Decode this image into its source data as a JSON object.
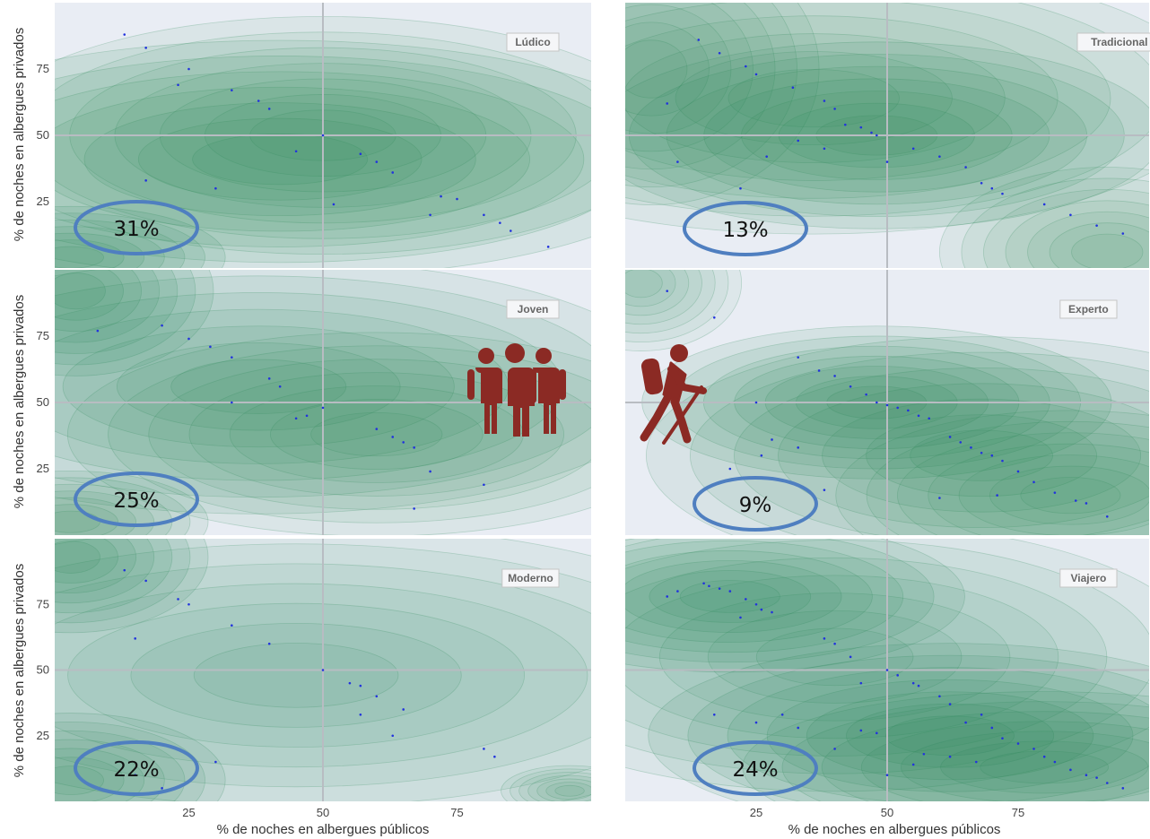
{
  "chart_data": {
    "type": "density-contour",
    "xlabel": "% de noches en albergues públicos",
    "ylabel": "% de noches en albergues privados",
    "xlim": [
      0,
      100
    ],
    "ylim": [
      0,
      100
    ],
    "xticks": [
      25,
      50,
      75
    ],
    "yticks": [
      25,
      50,
      75
    ],
    "grid": true,
    "colors": {
      "background": "#e9edf4",
      "contour": "#2e8a5c",
      "points": "#2233dd",
      "ellipse": "#4f7fc0",
      "icon": "#8b2a24",
      "gridline": "#b8bcc2"
    },
    "panels": [
      {
        "name": "Lúdico",
        "share": "31%",
        "peaks": [
          [
            3,
            4,
            9,
            6,
            1.0
          ],
          [
            42,
            41,
            24,
            14,
            0.9
          ],
          [
            50,
            50,
            20,
            14,
            0.45
          ]
        ],
        "points": [
          [
            13,
            88
          ],
          [
            17,
            83
          ],
          [
            25,
            75
          ],
          [
            23,
            69
          ],
          [
            33,
            67
          ],
          [
            38,
            63
          ],
          [
            40,
            60
          ],
          [
            60,
            40
          ],
          [
            57,
            43
          ],
          [
            63,
            36
          ],
          [
            45,
            44
          ],
          [
            50,
            50
          ],
          [
            75,
            26
          ],
          [
            72,
            27
          ],
          [
            70,
            20
          ],
          [
            80,
            20
          ],
          [
            83,
            17
          ],
          [
            85,
            14
          ],
          [
            92,
            8
          ],
          [
            30,
            30
          ],
          [
            17,
            33
          ],
          [
            52,
            24
          ]
        ]
      },
      {
        "name": "Tradicional",
        "share": "13%",
        "peaks": [
          [
            48,
            50,
            17,
            11,
            1.0
          ],
          [
            36,
            64,
            24,
            16,
            0.5
          ],
          [
            92,
            6,
            10,
            10,
            0.45
          ],
          [
            5,
            75,
            10,
            16,
            0.25
          ]
        ],
        "points": [
          [
            8,
            62
          ],
          [
            14,
            86
          ],
          [
            18,
            81
          ],
          [
            23,
            76
          ],
          [
            25,
            73
          ],
          [
            32,
            68
          ],
          [
            38,
            63
          ],
          [
            40,
            60
          ],
          [
            42,
            54
          ],
          [
            45,
            53
          ],
          [
            47,
            51
          ],
          [
            48,
            50
          ],
          [
            50,
            40
          ],
          [
            55,
            45
          ],
          [
            60,
            42
          ],
          [
            65,
            38
          ],
          [
            68,
            32
          ],
          [
            70,
            30
          ],
          [
            72,
            28
          ],
          [
            80,
            24
          ],
          [
            85,
            20
          ],
          [
            90,
            16
          ],
          [
            95,
            13
          ],
          [
            38,
            45
          ],
          [
            33,
            48
          ],
          [
            27,
            42
          ],
          [
            22,
            30
          ],
          [
            10,
            40
          ]
        ]
      },
      {
        "name": "Joven",
        "share": "25%",
        "peaks": [
          [
            4,
            92,
            8,
            10,
            1.0
          ],
          [
            3,
            5,
            8,
            6,
            0.85
          ],
          [
            38,
            56,
            24,
            15,
            0.75
          ],
          [
            60,
            38,
            18,
            12,
            0.5
          ]
        ],
        "points": [
          [
            8,
            77
          ],
          [
            20,
            79
          ],
          [
            25,
            74
          ],
          [
            29,
            71
          ],
          [
            33,
            67
          ],
          [
            40,
            59
          ],
          [
            42,
            56
          ],
          [
            45,
            44
          ],
          [
            47,
            45
          ],
          [
            50,
            48
          ],
          [
            60,
            40
          ],
          [
            63,
            37
          ],
          [
            65,
            35
          ],
          [
            67,
            33
          ],
          [
            70,
            24
          ],
          [
            80,
            19
          ],
          [
            33,
            50
          ],
          [
            67,
            10
          ]
        ]
      },
      {
        "name": "Experto",
        "share": "9%",
        "peaks": [
          [
            48,
            50,
            14,
            9,
            1.0
          ],
          [
            68,
            30,
            20,
            14,
            0.65
          ],
          [
            85,
            15,
            14,
            10,
            0.35
          ],
          [
            3,
            95,
            6,
            8,
            0.2
          ]
        ],
        "points": [
          [
            8,
            92
          ],
          [
            17,
            82
          ],
          [
            33,
            67
          ],
          [
            37,
            62
          ],
          [
            40,
            60
          ],
          [
            43,
            56
          ],
          [
            46,
            53
          ],
          [
            48,
            50
          ],
          [
            50,
            49
          ],
          [
            52,
            48
          ],
          [
            54,
            47
          ],
          [
            56,
            45
          ],
          [
            58,
            44
          ],
          [
            62,
            37
          ],
          [
            64,
            35
          ],
          [
            66,
            33
          ],
          [
            68,
            31
          ],
          [
            70,
            30
          ],
          [
            72,
            28
          ],
          [
            75,
            24
          ],
          [
            78,
            20
          ],
          [
            82,
            16
          ],
          [
            86,
            13
          ],
          [
            88,
            12
          ],
          [
            92,
            7
          ],
          [
            25,
            50
          ],
          [
            28,
            36
          ],
          [
            33,
            33
          ],
          [
            26,
            30
          ],
          [
            20,
            25
          ],
          [
            38,
            17
          ],
          [
            60,
            14
          ],
          [
            71,
            15
          ]
        ]
      },
      {
        "name": "Moderno",
        "share": "22%",
        "peaks": [
          [
            3,
            93,
            8,
            9,
            1.0
          ],
          [
            3,
            8,
            9,
            8,
            0.8
          ],
          [
            45,
            48,
            28,
            18,
            0.4
          ],
          [
            96,
            4,
            4,
            3,
            0.3
          ]
        ],
        "points": [
          [
            13,
            88
          ],
          [
            17,
            84
          ],
          [
            15,
            62
          ],
          [
            23,
            77
          ],
          [
            25,
            75
          ],
          [
            33,
            67
          ],
          [
            40,
            60
          ],
          [
            50,
            50
          ],
          [
            55,
            45
          ],
          [
            57,
            44
          ],
          [
            60,
            40
          ],
          [
            57,
            33
          ],
          [
            65,
            35
          ],
          [
            63,
            25
          ],
          [
            80,
            20
          ],
          [
            82,
            17
          ],
          [
            30,
            15
          ],
          [
            15,
            10
          ],
          [
            20,
            5
          ]
        ]
      },
      {
        "name": "Viajero",
        "share": "24%",
        "peaks": [
          [
            20,
            78,
            14,
            9,
            0.9
          ],
          [
            62,
            25,
            18,
            11,
            1.0
          ],
          [
            80,
            13,
            18,
            9,
            0.7
          ],
          [
            40,
            55,
            22,
            16,
            0.4
          ]
        ],
        "points": [
          [
            8,
            78
          ],
          [
            10,
            80
          ],
          [
            15,
            83
          ],
          [
            16,
            82
          ],
          [
            18,
            81
          ],
          [
            20,
            80
          ],
          [
            23,
            77
          ],
          [
            25,
            75
          ],
          [
            26,
            73
          ],
          [
            28,
            72
          ],
          [
            22,
            70
          ],
          [
            38,
            62
          ],
          [
            40,
            60
          ],
          [
            43,
            55
          ],
          [
            45,
            45
          ],
          [
            50,
            50
          ],
          [
            52,
            48
          ],
          [
            55,
            45
          ],
          [
            56,
            44
          ],
          [
            60,
            40
          ],
          [
            62,
            37
          ],
          [
            65,
            30
          ],
          [
            68,
            33
          ],
          [
            70,
            28
          ],
          [
            72,
            24
          ],
          [
            75,
            22
          ],
          [
            78,
            20
          ],
          [
            80,
            17
          ],
          [
            82,
            15
          ],
          [
            85,
            12
          ],
          [
            88,
            10
          ],
          [
            90,
            9
          ],
          [
            92,
            7
          ],
          [
            95,
            5
          ],
          [
            48,
            26
          ],
          [
            45,
            27
          ],
          [
            33,
            28
          ],
          [
            30,
            33
          ],
          [
            17,
            33
          ],
          [
            25,
            30
          ],
          [
            40,
            20
          ],
          [
            50,
            10
          ],
          [
            55,
            14
          ],
          [
            57,
            18
          ],
          [
            62,
            17
          ],
          [
            67,
            15
          ]
        ]
      }
    ]
  }
}
